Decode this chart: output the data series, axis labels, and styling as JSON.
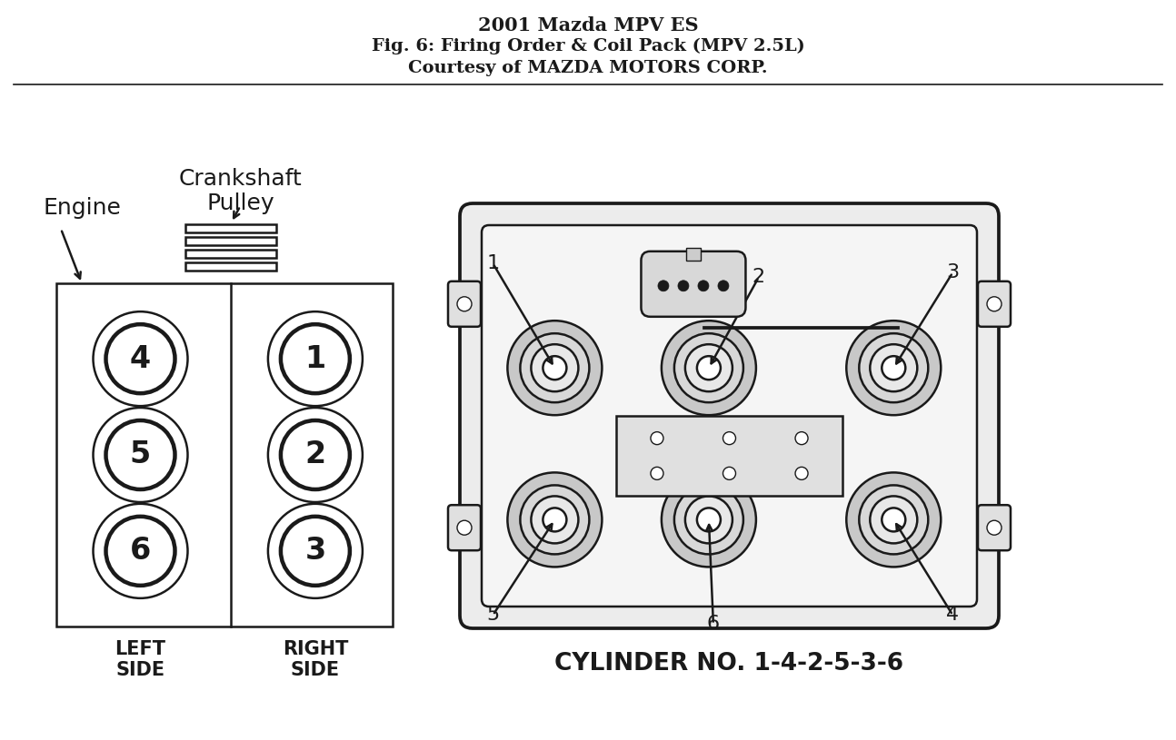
{
  "title_line1": "2001 Mazda MPV ES",
  "title_line2": "Fig. 6: Firing Order & Coil Pack (MPV 2.5L)",
  "title_line3": "Courtesy of MAZDA MOTORS CORP.",
  "bg_color": "#ffffff",
  "line_color": "#1a1a1a",
  "title_fontsize": 14,
  "subtitle_fontsize": 14,
  "crankshaft_label": "Crankshaft\nPulley",
  "engine_label": "Engine",
  "left_side_label": "LEFT\nSIDE",
  "right_side_label": "RIGHT\nSIDE",
  "cylinder_order_label": "CYLINDER NO. 1-4-2-5-3-6",
  "left_cylinders": [
    "4",
    "5",
    "6"
  ],
  "right_cylinders": [
    "1",
    "2",
    "3"
  ],
  "top_coil_labels": [
    "1",
    "2",
    "3"
  ],
  "bot_coil_labels": [
    "5",
    "6",
    "4"
  ]
}
